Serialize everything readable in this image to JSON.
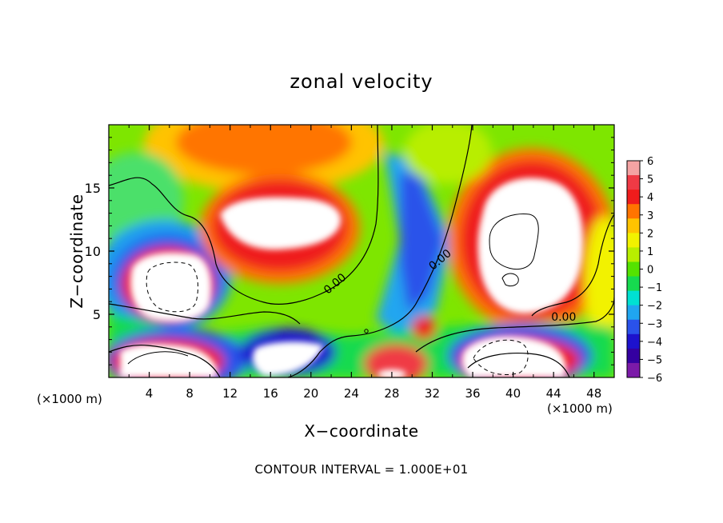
{
  "chart_data": {
    "type": "heatmap",
    "title": "zonal velocity",
    "xlabel": "X−coordinate",
    "ylabel": "Z−coordinate",
    "x_unit_label": "(×1000 m)",
    "x_ticks": [
      4,
      8,
      12,
      16,
      20,
      24,
      28,
      32,
      36,
      40,
      44,
      48
    ],
    "y_ticks": [
      5,
      10,
      15
    ],
    "xlim": [
      0,
      50
    ],
    "ylim": [
      0,
      20
    ],
    "colorbar": {
      "labels": [
        "6",
        "5",
        "4",
        "3",
        "2",
        "1",
        "0",
        "−1",
        "−2",
        "−3",
        "−4",
        "−5",
        "−6"
      ],
      "range": [
        -6,
        6
      ],
      "colors": [
        "#f4a3a3",
        "#f03a45",
        "#ef1c1c",
        "#ff7400",
        "#ffc300",
        "#f2f200",
        "#b8ee00",
        "#55e200",
        "#16da4f",
        "#00e1d2",
        "#20a6f0",
        "#2a52ea",
        "#1d12cd",
        "#3400a0",
        "#7b1aa8"
      ]
    },
    "contour_labels": [
      {
        "text": "0.00",
        "x": 22.6,
        "z": 7.2
      },
      {
        "text": "0.00",
        "x": 33.0,
        "z": 9.1
      },
      {
        "text": "0.00",
        "x": 45.0,
        "z": 4.5
      }
    ],
    "footer": "CONTOUR INTERVAL = 1.000E+01"
  }
}
